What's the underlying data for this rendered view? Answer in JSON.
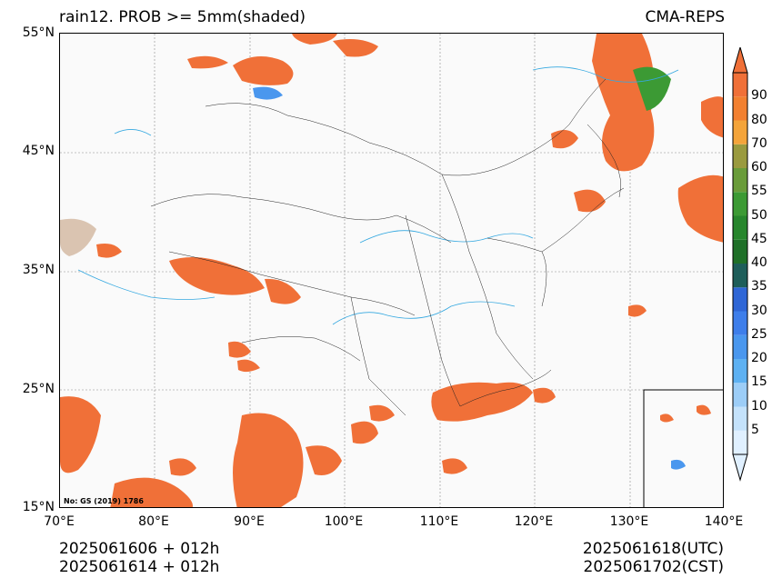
{
  "title": {
    "left": "rain12. PROB >= 5mm(shaded)",
    "right": "CMA-REPS"
  },
  "axes": {
    "lat_labels": [
      "55°N",
      "45°N",
      "35°N",
      "25°N",
      "15°N"
    ],
    "lon_labels": [
      "70°E",
      "80°E",
      "90°E",
      "100°E",
      "110°E",
      "120°E",
      "130°E",
      "140°E"
    ],
    "lat_range": [
      15,
      55
    ],
    "lon_range": [
      70,
      140
    ]
  },
  "colorbar": {
    "levels": [
      "5",
      "10",
      "15",
      "20",
      "25",
      "30",
      "35",
      "40",
      "45",
      "50",
      "55",
      "60",
      "70",
      "80",
      "90"
    ],
    "colors": [
      "#e0f0ff",
      "#c4e2fb",
      "#9ccdf7",
      "#5eb1f2",
      "#4a97ee",
      "#3e7eea",
      "#2f66d6",
      "#1e5e5a",
      "#1f7028",
      "#27862c",
      "#3c9a34",
      "#6a9c3a",
      "#9a9a3e",
      "#f4a43a",
      "#f28030",
      "#f07038"
    ]
  },
  "stamp": "No: GS (2019) 1786",
  "footer": {
    "left_line1": "2025061606  +  012h",
    "left_line2": "2025061614  +  012h",
    "right_line1": "2025061618(UTC)",
    "right_line2": "2025061702(CST)"
  },
  "colors": {
    "rain_high": "#f07038",
    "river": "#35a8e0",
    "border": "#222222"
  }
}
